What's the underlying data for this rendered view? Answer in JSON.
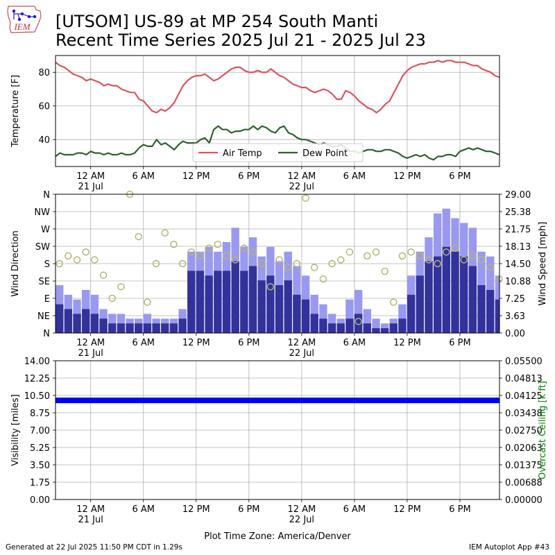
{
  "header": {
    "title_line1": "[UTSOM] US-89 at MP 254 South Manti",
    "title_line2": "Recent Time Series 2025 Jul 21 - 2025 Jul 23",
    "logo_text": "IEM"
  },
  "footer": {
    "generated": "Generated at 22 Jul 2025 11:50 PM CDT in 1.29s",
    "app": "IEM Autoplot App #43"
  },
  "chart_data": [
    {
      "type": "line",
      "x_unit": "hours since 20 Jul 2025 8 PM (America/Denver)",
      "xlim": [
        0,
        50.5
      ],
      "x_ticks": [
        4,
        10,
        16,
        22,
        28,
        34,
        40,
        46
      ],
      "x_tick_labels": [
        "12 AM",
        "6 AM",
        "12 PM",
        "6 PM",
        "12 AM",
        "6 AM",
        "12 PM",
        "6 PM"
      ],
      "x_tick_sublabels": [
        "21 Jul",
        "",
        "",
        "",
        "22 Jul",
        "",
        "",
        ""
      ],
      "ylabel": "Temperature [F]",
      "ylim": [
        24,
        90
      ],
      "y_ticks": [
        40,
        60,
        80
      ],
      "grid": true,
      "legend": "lower-center",
      "series": [
        {
          "name": "Air Temp",
          "color": "#d9545d",
          "x": [
            0,
            0.5,
            1,
            1.5,
            2,
            2.5,
            3,
            3.5,
            4,
            4.5,
            5,
            5.5,
            6,
            6.5,
            7,
            7.5,
            8,
            8.5,
            9,
            9.5,
            10,
            10.5,
            11,
            11.5,
            12,
            12.5,
            13,
            13.5,
            14,
            14.5,
            15,
            15.5,
            16,
            16.5,
            17,
            17.5,
            18,
            18.5,
            19,
            19.5,
            20,
            20.5,
            21,
            21.5,
            22,
            22.5,
            23,
            23.5,
            24,
            24.5,
            25,
            25.5,
            26,
            26.5,
            27,
            27.5,
            28,
            28.5,
            29,
            29.5,
            30,
            30.5,
            31,
            31.5,
            32,
            32.5,
            33,
            33.5,
            34,
            34.5,
            35,
            35.5,
            36,
            36.5,
            37,
            37.5,
            38,
            38.5,
            39,
            39.5,
            40,
            40.5,
            41,
            41.5,
            42,
            42.5,
            43,
            43.5,
            44,
            44.5,
            45,
            45.5,
            46,
            46.5,
            47,
            47.5,
            48,
            48.5,
            49,
            49.5,
            50,
            50.5
          ],
          "values": [
            86,
            84,
            83,
            81,
            79,
            78,
            77,
            75,
            76,
            75,
            74,
            72,
            73,
            72,
            72,
            70,
            69,
            68,
            68,
            64,
            63,
            60,
            57,
            56,
            58,
            57,
            59,
            62,
            67,
            72,
            75,
            77,
            78,
            78,
            79,
            77,
            75,
            76,
            78,
            80,
            82,
            83,
            83,
            81,
            80,
            80,
            81,
            80,
            80,
            82,
            80,
            78,
            77,
            75,
            73,
            72,
            71,
            71,
            69,
            68,
            69,
            70,
            69,
            67,
            64,
            64,
            69,
            68,
            66,
            63,
            61,
            59,
            58,
            56,
            58,
            61,
            63,
            68,
            73,
            78,
            81,
            83,
            84,
            85,
            85,
            86,
            86,
            87,
            86,
            87,
            87,
            86,
            86,
            86,
            85,
            84,
            84,
            82,
            81,
            80,
            78,
            77
          ]
        },
        {
          "name": "Dew Point",
          "color": "#2f5f2f",
          "x": [
            0,
            0.5,
            1,
            1.5,
            2,
            2.5,
            3,
            3.5,
            4,
            4.5,
            5,
            5.5,
            6,
            6.5,
            7,
            7.5,
            8,
            8.5,
            9,
            9.5,
            10,
            10.5,
            11,
            11.5,
            12,
            12.5,
            13,
            13.5,
            14,
            14.5,
            15,
            15.5,
            16,
            16.5,
            17,
            17.5,
            18,
            18.5,
            19,
            19.5,
            20,
            20.5,
            21,
            21.5,
            22,
            22.5,
            23,
            23.5,
            24,
            24.5,
            25,
            25.5,
            26,
            26.5,
            27,
            27.5,
            28,
            28.5,
            29,
            29.5,
            30,
            30.5,
            31,
            31.5,
            32,
            32.5,
            33,
            33.5,
            34,
            34.5,
            35,
            35.5,
            36,
            36.5,
            37,
            37.5,
            38,
            38.5,
            39,
            39.5,
            40,
            40.5,
            41,
            41.5,
            42,
            42.5,
            43,
            43.5,
            44,
            44.5,
            45,
            45.5,
            46,
            46.5,
            47,
            47.5,
            48,
            48.5,
            49,
            49.5,
            50,
            50.5
          ],
          "values": [
            30,
            32,
            31,
            31,
            31,
            32,
            32,
            31,
            33,
            32,
            32,
            31,
            32,
            31,
            31,
            32,
            31,
            31,
            32,
            35,
            37,
            36,
            36,
            40,
            37,
            38,
            36,
            34,
            37,
            39,
            38,
            38,
            38,
            40,
            41,
            38,
            46,
            48,
            46,
            46,
            44,
            45,
            45,
            46,
            46,
            48,
            46,
            48,
            47,
            45,
            44,
            47,
            48,
            44,
            43,
            41,
            40,
            40,
            39,
            38,
            37,
            38,
            37,
            36,
            36,
            37,
            35,
            33,
            33,
            32,
            33,
            34,
            34,
            33,
            33,
            34,
            34,
            33,
            32,
            30,
            29,
            30,
            31,
            30,
            31,
            29,
            28,
            30,
            30,
            31,
            31,
            30,
            33,
            34,
            35,
            34,
            35,
            34,
            33,
            33,
            32,
            31
          ]
        }
      ]
    },
    {
      "type": "bar",
      "x_unit": "hours since 20 Jul 2025 8 PM (America/Denver)",
      "xlim": [
        0,
        50.5
      ],
      "x_ticks": [
        4,
        10,
        16,
        22,
        28,
        34,
        40,
        46
      ],
      "x_tick_labels": [
        "12 AM",
        "6 AM",
        "12 PM",
        "6 PM",
        "12 AM",
        "6 AM",
        "12 PM",
        "6 PM"
      ],
      "x_tick_sublabels": [
        "21 Jul",
        "",
        "",
        "",
        "22 Jul",
        "",
        "",
        ""
      ],
      "ylabel": "Wind Direction",
      "ylabel_right": "Wind Speed [mph]",
      "y_ticks_left": [
        "N",
        "NE",
        "E",
        "SE",
        "S",
        "SW",
        "W",
        "NW",
        "N"
      ],
      "y_ticks_right": [
        "0.00",
        "3.63",
        "7.25",
        "10.88",
        "14.50",
        "18.13",
        "21.75",
        "25.38",
        "29.00"
      ],
      "ylim_direction_deg": [
        0,
        360
      ],
      "ylim_speed": [
        0,
        29
      ],
      "grid": true,
      "x": [
        0,
        1,
        2,
        3,
        4,
        5,
        6,
        7,
        8,
        9,
        10,
        11,
        12,
        13,
        14,
        15,
        16,
        17,
        18,
        19,
        20,
        21,
        22,
        23,
        24,
        25,
        26,
        27,
        28,
        29,
        30,
        31,
        32,
        33,
        34,
        35,
        36,
        37,
        38,
        39,
        40,
        41,
        42,
        43,
        44,
        45,
        46,
        47,
        48,
        49,
        50
      ],
      "series": [
        {
          "name": "gust_speed",
          "color": "#9a99f0",
          "values": [
            10,
            8,
            7,
            9,
            8,
            5,
            4,
            4,
            3,
            3,
            4,
            3,
            3,
            3,
            5,
            17,
            17,
            18,
            17,
            19,
            22,
            18,
            20,
            16,
            18,
            15,
            17,
            14,
            12,
            8,
            6,
            4,
            3,
            7,
            9,
            5,
            3,
            2,
            3,
            6,
            12,
            17,
            20,
            25,
            26,
            24,
            23,
            22,
            17,
            16,
            12
          ]
        },
        {
          "name": "wind_speed",
          "color": "#32329a",
          "values": [
            6,
            5,
            4,
            5,
            4,
            3,
            2,
            2,
            2,
            2,
            2,
            2,
            2,
            2,
            3,
            13,
            13,
            12,
            13,
            13,
            15,
            13,
            14,
            11,
            12,
            10,
            11,
            8,
            7,
            4,
            3,
            2,
            2,
            3,
            4,
            2,
            1,
            1,
            2,
            3,
            8,
            12,
            15,
            16,
            18,
            17,
            16,
            14,
            10,
            9,
            7
          ]
        },
        {
          "name": "wind_direction",
          "color": "#b5b672",
          "values": [
            180,
            200,
            190,
            210,
            190,
            150,
            90,
            120,
            360,
            250,
            80,
            180,
            260,
            230,
            180,
            210,
            200,
            220,
            230,
            200,
            190,
            220,
            210,
            180,
            120,
            190,
            170,
            180,
            350,
            170,
            140,
            180,
            190,
            210,
            30,
            200,
            210,
            160,
            80,
            200,
            210,
            200,
            190,
            180,
            210,
            220,
            190,
            200,
            190,
            170,
            140
          ]
        }
      ]
    },
    {
      "type": "bar",
      "x_unit": "hours since 20 Jul 2025 8 PM (America/Denver)",
      "xlim": [
        0,
        50.5
      ],
      "x_ticks": [
        4,
        10,
        16,
        22,
        28,
        34,
        40,
        46
      ],
      "x_tick_labels": [
        "12 AM",
        "6 AM",
        "12 PM",
        "6 PM",
        "12 AM",
        "6 AM",
        "12 PM",
        "6 PM"
      ],
      "x_tick_sublabels": [
        "21 Jul",
        "",
        "",
        "",
        "22 Jul",
        "",
        "",
        ""
      ],
      "xlabel": "Plot Time Zone: America/Denver",
      "ylabel": "Visibility [miles]",
      "ylabel_right": "Overcast Ceiling [k ft]",
      "ylabel_right_color": "#008000",
      "ylim": [
        0,
        14
      ],
      "ylim_right": [
        0,
        0.055
      ],
      "y_ticks_left": [
        "0.00",
        "1.75",
        "3.50",
        "5.25",
        "7.00",
        "8.75",
        "10.50",
        "12.25",
        "14.00"
      ],
      "y_ticks_right": [
        "0.00000",
        "0.00688",
        "0.01375",
        "0.02063",
        "0.02750",
        "0.03438",
        "0.04125",
        "0.04813",
        "0.05500"
      ],
      "grid": true,
      "series": [
        {
          "name": "visibility",
          "color": "#0000ff",
          "values": [
            10
          ]
        }
      ]
    }
  ]
}
